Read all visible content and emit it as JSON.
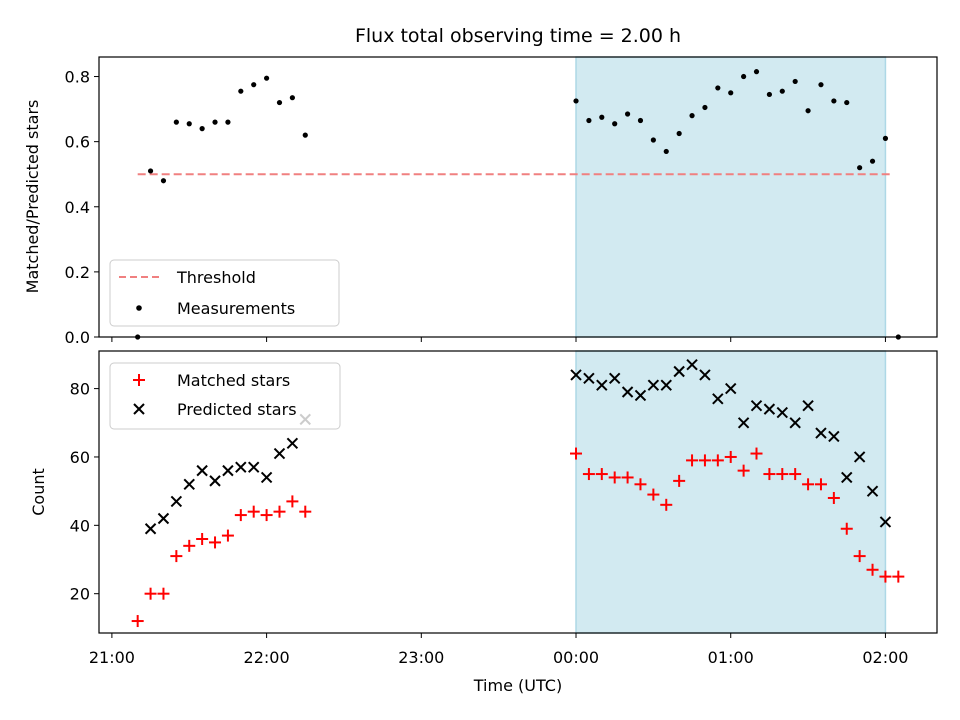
{
  "chart_data": [
    {
      "type": "scatter",
      "title": "Flux total observing time = 2.00 h",
      "xlabel": "",
      "ylabel": "Matched/Predicted stars",
      "xlim": [
        "20:55",
        "02:20"
      ],
      "ylim": [
        0,
        0.86
      ],
      "yticks": [
        0.0,
        0.2,
        0.4,
        0.6,
        0.8
      ],
      "yticklabels": [
        "0.0",
        "0.2",
        "0.4",
        "0.6",
        "0.8"
      ],
      "highlight_span": [
        "00:00",
        "02:00"
      ],
      "highlight_color": "#add8e6",
      "threshold": {
        "name": "Threshold",
        "value": 0.5,
        "x_range": [
          "21:10",
          "02:02"
        ],
        "color": "#f08080"
      },
      "legend": {
        "position": "lower-left",
        "entries": [
          "Threshold",
          "Measurements"
        ]
      },
      "series": [
        {
          "name": "Measurements",
          "color": "#000000",
          "x": [
            "21:10",
            "21:15",
            "21:20",
            "21:25",
            "21:30",
            "21:35",
            "21:40",
            "21:45",
            "21:50",
            "21:55",
            "22:00",
            "22:05",
            "22:10",
            "22:15",
            "00:00",
            "00:05",
            "00:10",
            "00:15",
            "00:20",
            "00:25",
            "00:30",
            "00:35",
            "00:40",
            "00:45",
            "00:50",
            "00:55",
            "01:00",
            "01:05",
            "01:10",
            "01:15",
            "01:20",
            "01:25",
            "01:30",
            "01:35",
            "01:40",
            "01:45",
            "01:50",
            "01:55",
            "02:00",
            "02:05"
          ],
          "y": [
            0.0,
            0.51,
            0.48,
            0.66,
            0.655,
            0.64,
            0.66,
            0.66,
            0.755,
            0.775,
            0.795,
            0.72,
            0.735,
            0.62,
            0.725,
            0.665,
            0.675,
            0.655,
            0.685,
            0.665,
            0.605,
            0.57,
            0.625,
            0.68,
            0.705,
            0.765,
            0.75,
            0.8,
            0.815,
            0.745,
            0.755,
            0.785,
            0.695,
            0.775,
            0.725,
            0.72,
            0.52,
            0.54,
            0.61,
            0.0
          ]
        }
      ]
    },
    {
      "type": "scatter",
      "title": "",
      "xlabel": "Time (UTC)",
      "ylabel": "Count",
      "xlim": [
        "20:55",
        "02:20"
      ],
      "ylim": [
        8.5,
        91
      ],
      "yticks": [
        20,
        40,
        60,
        80
      ],
      "yticklabels": [
        "20",
        "40",
        "60",
        "80"
      ],
      "xticks": [
        "21:00",
        "22:00",
        "23:00",
        "00:00",
        "01:00",
        "02:00"
      ],
      "xticklabels": [
        "21:00",
        "22:00",
        "23:00",
        "00:00",
        "01:00",
        "02:00"
      ],
      "highlight_span": [
        "00:00",
        "02:00"
      ],
      "highlight_color": "#add8e6",
      "legend": {
        "position": "upper-left",
        "entries": [
          "Matched stars",
          "Predicted stars"
        ]
      },
      "series": [
        {
          "name": "Matched stars",
          "marker": "plus",
          "color": "#ff0000",
          "x": [
            "21:10",
            "21:15",
            "21:20",
            "21:25",
            "21:30",
            "21:35",
            "21:40",
            "21:45",
            "21:50",
            "21:55",
            "22:00",
            "22:05",
            "22:10",
            "22:15",
            "00:00",
            "00:05",
            "00:10",
            "00:15",
            "00:20",
            "00:25",
            "00:30",
            "00:35",
            "00:40",
            "00:45",
            "00:50",
            "00:55",
            "01:00",
            "01:05",
            "01:10",
            "01:15",
            "01:20",
            "01:25",
            "01:30",
            "01:35",
            "01:40",
            "01:45",
            "01:50",
            "01:55",
            "02:00",
            "02:05"
          ],
          "y": [
            12,
            20,
            20,
            31,
            34,
            36,
            35,
            37,
            43,
            44,
            43,
            44,
            47,
            44,
            61,
            55,
            55,
            54,
            54,
            52,
            49,
            46,
            53,
            59,
            59,
            59,
            60,
            56,
            61,
            55,
            55,
            55,
            52,
            52,
            48,
            39,
            31,
            27,
            25,
            25
          ]
        },
        {
          "name": "Predicted stars",
          "marker": "x",
          "color": "#000000",
          "x": [
            "21:15",
            "21:20",
            "21:25",
            "21:30",
            "21:35",
            "21:40",
            "21:45",
            "21:50",
            "21:55",
            "22:00",
            "22:05",
            "22:10",
            "22:15",
            "00:00",
            "00:05",
            "00:10",
            "00:15",
            "00:20",
            "00:25",
            "00:30",
            "00:35",
            "00:40",
            "00:45",
            "00:50",
            "00:55",
            "01:00",
            "01:05",
            "01:10",
            "01:15",
            "01:20",
            "01:25",
            "01:30",
            "01:35",
            "01:40",
            "01:45",
            "01:50",
            "01:55",
            "02:00"
          ],
          "y": [
            39,
            42,
            47,
            52,
            56,
            53,
            56,
            57,
            57,
            54,
            61,
            64,
            71,
            84,
            83,
            81,
            83,
            79,
            78,
            81,
            81,
            85,
            87,
            84,
            77,
            80,
            70,
            75,
            74,
            73,
            70,
            75,
            67,
            66,
            54,
            60,
            50,
            41
          ]
        }
      ]
    }
  ]
}
